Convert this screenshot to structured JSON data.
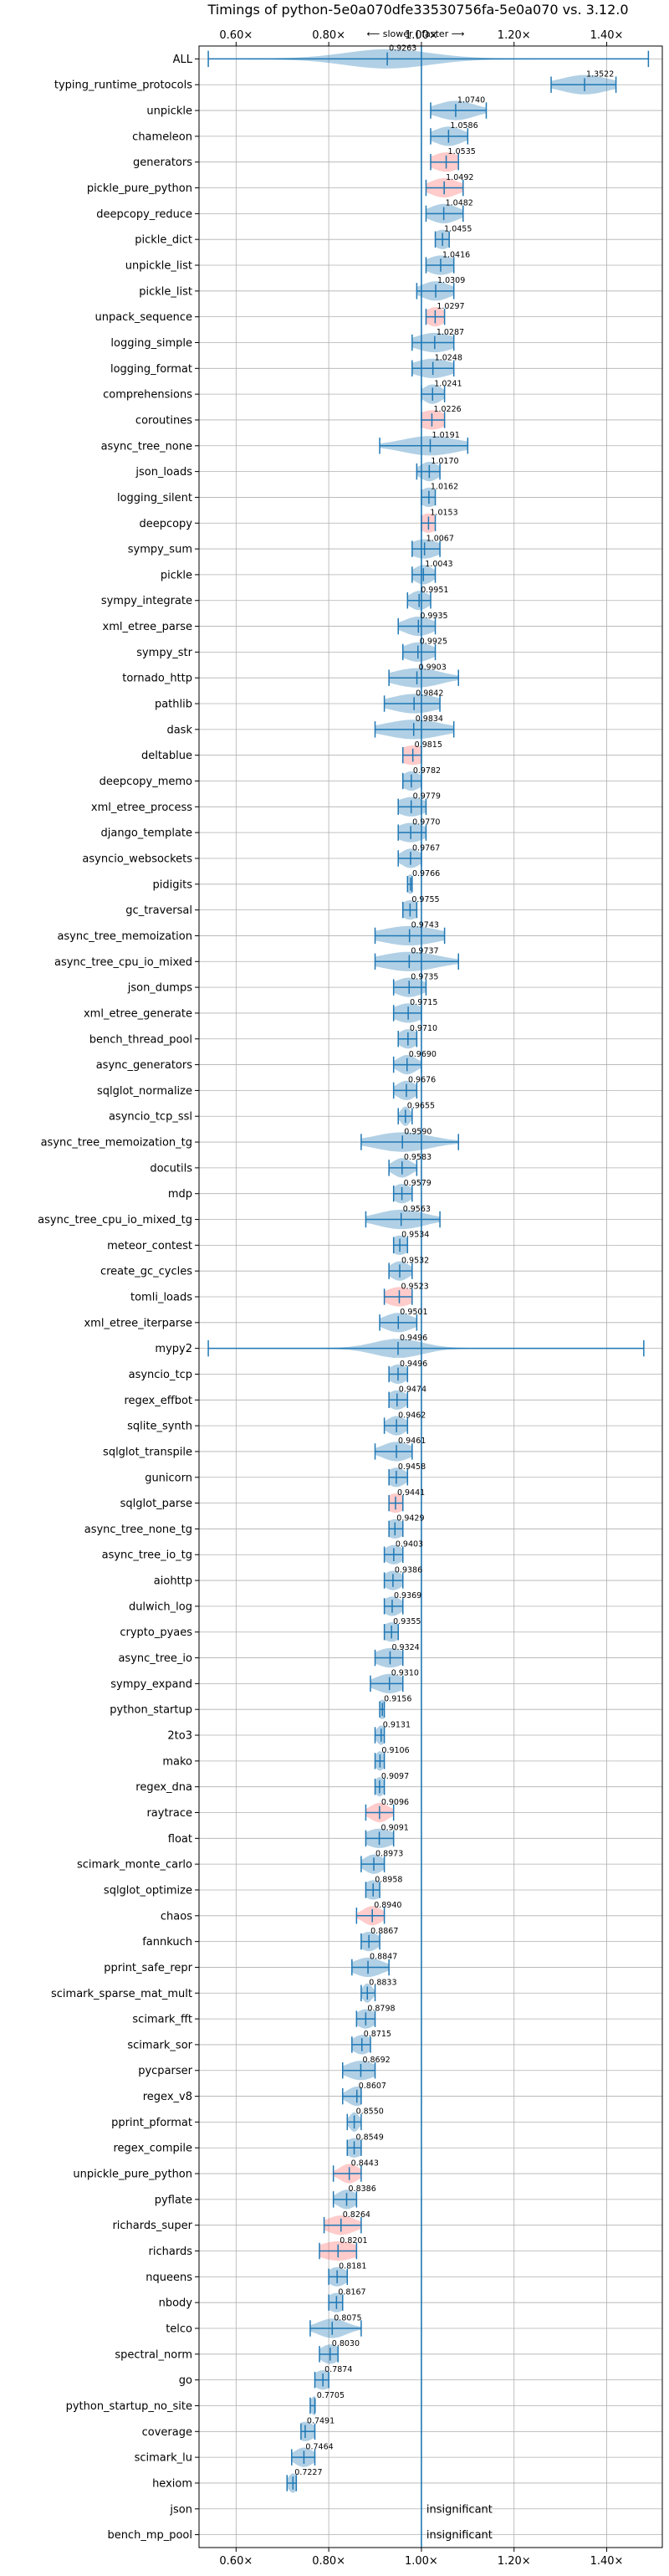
{
  "chart_data": {
    "type": "violin",
    "title": "Timings of python-5e0a070dfe33530756fa-5e0a070 vs. 3.12.0",
    "subtitle": "⟵ slower | faster ⟶",
    "xlim": [
      0.52,
      1.52
    ],
    "xticks": [
      0.6,
      0.8,
      1.0,
      1.2,
      1.4
    ],
    "xtick_labels": [
      "0.60×",
      "0.80×",
      "1.00×",
      "1.20×",
      "1.40×"
    ],
    "grid": true,
    "reference_line": 1.0,
    "colors": {
      "significant": "#1f77b4",
      "highlight": "#ff6b6b",
      "reference": "#1f77b4"
    },
    "benchmarks": [
      {
        "name": "ALL",
        "value": 0.9263,
        "lo": 0.54,
        "hi": 1.49,
        "w": 0.09
      },
      {
        "name": "typing_runtime_protocols",
        "value": 1.3522,
        "lo": 1.28,
        "hi": 1.42,
        "w": 0.05
      },
      {
        "name": "unpickle",
        "value": 1.074,
        "lo": 1.02,
        "hi": 1.14,
        "w": 0.04
      },
      {
        "name": "chameleon",
        "value": 1.0586,
        "lo": 1.02,
        "hi": 1.1,
        "w": 0.03
      },
      {
        "name": "generators",
        "value": 1.0535,
        "lo": 1.02,
        "hi": 1.08,
        "w": 0.03,
        "hl": true
      },
      {
        "name": "pickle_pure_python",
        "value": 1.0492,
        "lo": 1.01,
        "hi": 1.09,
        "w": 0.03,
        "hl": true
      },
      {
        "name": "deepcopy_reduce",
        "value": 1.0482,
        "lo": 1.01,
        "hi": 1.09,
        "w": 0.03
      },
      {
        "name": "pickle_dict",
        "value": 1.0455,
        "lo": 1.03,
        "hi": 1.06,
        "w": 0.02
      },
      {
        "name": "unpickle_list",
        "value": 1.0416,
        "lo": 1.01,
        "hi": 1.07,
        "w": 0.03
      },
      {
        "name": "pickle_list",
        "value": 1.0309,
        "lo": 0.99,
        "hi": 1.07,
        "w": 0.03
      },
      {
        "name": "unpack_sequence",
        "value": 1.0297,
        "lo": 1.01,
        "hi": 1.05,
        "w": 0.02,
        "hl": true
      },
      {
        "name": "logging_simple",
        "value": 1.0287,
        "lo": 0.98,
        "hi": 1.07,
        "w": 0.04
      },
      {
        "name": "logging_format",
        "value": 1.0248,
        "lo": 0.98,
        "hi": 1.07,
        "w": 0.04
      },
      {
        "name": "comprehensions",
        "value": 1.0241,
        "lo": 1.0,
        "hi": 1.05,
        "w": 0.02
      },
      {
        "name": "coroutines",
        "value": 1.0226,
        "lo": 1.0,
        "hi": 1.05,
        "w": 0.03,
        "hl": true
      },
      {
        "name": "async_tree_none",
        "value": 1.0191,
        "lo": 0.91,
        "hi": 1.1,
        "w": 0.06
      },
      {
        "name": "json_loads",
        "value": 1.017,
        "lo": 0.99,
        "hi": 1.04,
        "w": 0.02
      },
      {
        "name": "logging_silent",
        "value": 1.0162,
        "lo": 1.0,
        "hi": 1.03,
        "w": 0.02
      },
      {
        "name": "deepcopy",
        "value": 1.0153,
        "lo": 1.0,
        "hi": 1.03,
        "w": 0.02,
        "hl": true
      },
      {
        "name": "sympy_sum",
        "value": 1.0067,
        "lo": 0.98,
        "hi": 1.04,
        "w": 0.03
      },
      {
        "name": "pickle",
        "value": 1.0043,
        "lo": 0.98,
        "hi": 1.03,
        "w": 0.02
      },
      {
        "name": "sympy_integrate",
        "value": 0.9951,
        "lo": 0.97,
        "hi": 1.02,
        "w": 0.02
      },
      {
        "name": "xml_etree_parse",
        "value": 0.9935,
        "lo": 0.95,
        "hi": 1.03,
        "w": 0.03
      },
      {
        "name": "sympy_str",
        "value": 0.9925,
        "lo": 0.96,
        "hi": 1.03,
        "w": 0.03
      },
      {
        "name": "tornado_http",
        "value": 0.9903,
        "lo": 0.93,
        "hi": 1.08,
        "w": 0.05
      },
      {
        "name": "pathlib",
        "value": 0.9842,
        "lo": 0.92,
        "hi": 1.04,
        "w": 0.05
      },
      {
        "name": "dask",
        "value": 0.9834,
        "lo": 0.9,
        "hi": 1.07,
        "w": 0.06
      },
      {
        "name": "deltablue",
        "value": 0.9815,
        "lo": 0.96,
        "hi": 1.0,
        "w": 0.03,
        "hl": true
      },
      {
        "name": "deepcopy_memo",
        "value": 0.9782,
        "lo": 0.96,
        "hi": 1.0,
        "w": 0.02
      },
      {
        "name": "xml_etree_process",
        "value": 0.9779,
        "lo": 0.95,
        "hi": 1.01,
        "w": 0.03
      },
      {
        "name": "django_template",
        "value": 0.977,
        "lo": 0.95,
        "hi": 1.01,
        "w": 0.03
      },
      {
        "name": "asyncio_websockets",
        "value": 0.9767,
        "lo": 0.95,
        "hi": 1.0,
        "w": 0.02
      },
      {
        "name": "pidigits",
        "value": 0.9766,
        "lo": 0.97,
        "hi": 0.98,
        "w": 0.01
      },
      {
        "name": "gc_traversal",
        "value": 0.9755,
        "lo": 0.96,
        "hi": 0.99,
        "w": 0.02
      },
      {
        "name": "async_tree_memoization",
        "value": 0.9743,
        "lo": 0.9,
        "hi": 1.05,
        "w": 0.06
      },
      {
        "name": "async_tree_cpu_io_mixed",
        "value": 0.9737,
        "lo": 0.9,
        "hi": 1.08,
        "w": 0.06
      },
      {
        "name": "json_dumps",
        "value": 0.9735,
        "lo": 0.94,
        "hi": 1.01,
        "w": 0.03
      },
      {
        "name": "xml_etree_generate",
        "value": 0.9715,
        "lo": 0.94,
        "hi": 1.0,
        "w": 0.03
      },
      {
        "name": "bench_thread_pool",
        "value": 0.971,
        "lo": 0.95,
        "hi": 0.99,
        "w": 0.02
      },
      {
        "name": "async_generators",
        "value": 0.969,
        "lo": 0.94,
        "hi": 1.0,
        "w": 0.02
      },
      {
        "name": "sqlglot_normalize",
        "value": 0.9676,
        "lo": 0.94,
        "hi": 0.99,
        "w": 0.02
      },
      {
        "name": "asyncio_tcp_ssl",
        "value": 0.9655,
        "lo": 0.95,
        "hi": 0.98,
        "w": 0.01
      },
      {
        "name": "async_tree_memoization_tg",
        "value": 0.959,
        "lo": 0.87,
        "hi": 1.08,
        "w": 0.06
      },
      {
        "name": "docutils",
        "value": 0.9583,
        "lo": 0.93,
        "hi": 0.99,
        "w": 0.02
      },
      {
        "name": "mdp",
        "value": 0.9579,
        "lo": 0.94,
        "hi": 0.98,
        "w": 0.02
      },
      {
        "name": "async_tree_cpu_io_mixed_tg",
        "value": 0.9563,
        "lo": 0.88,
        "hi": 1.04,
        "w": 0.05
      },
      {
        "name": "meteor_contest",
        "value": 0.9534,
        "lo": 0.94,
        "hi": 0.97,
        "w": 0.02
      },
      {
        "name": "create_gc_cycles",
        "value": 0.9532,
        "lo": 0.93,
        "hi": 0.98,
        "w": 0.02
      },
      {
        "name": "tomli_loads",
        "value": 0.9523,
        "lo": 0.92,
        "hi": 0.98,
        "w": 0.03,
        "hl": true
      },
      {
        "name": "xml_etree_iterparse",
        "value": 0.9501,
        "lo": 0.91,
        "hi": 0.99,
        "w": 0.03
      },
      {
        "name": "mypy2",
        "value": 0.9496,
        "lo": 0.54,
        "hi": 1.48,
        "w": 0.05
      },
      {
        "name": "asyncio_tcp",
        "value": 0.9496,
        "lo": 0.93,
        "hi": 0.97,
        "w": 0.02
      },
      {
        "name": "regex_effbot",
        "value": 0.9474,
        "lo": 0.93,
        "hi": 0.97,
        "w": 0.02
      },
      {
        "name": "sqlite_synth",
        "value": 0.9462,
        "lo": 0.92,
        "hi": 0.97,
        "w": 0.02
      },
      {
        "name": "sqlglot_transpile",
        "value": 0.9461,
        "lo": 0.9,
        "hi": 0.98,
        "w": 0.03
      },
      {
        "name": "gunicorn",
        "value": 0.9458,
        "lo": 0.93,
        "hi": 0.97,
        "w": 0.02
      },
      {
        "name": "sqlglot_parse",
        "value": 0.9441,
        "lo": 0.93,
        "hi": 0.96,
        "w": 0.02,
        "hl": true
      },
      {
        "name": "async_tree_none_tg",
        "value": 0.9429,
        "lo": 0.93,
        "hi": 0.96,
        "w": 0.02
      },
      {
        "name": "async_tree_io_tg",
        "value": 0.9403,
        "lo": 0.92,
        "hi": 0.96,
        "w": 0.02
      },
      {
        "name": "aiohttp",
        "value": 0.9386,
        "lo": 0.92,
        "hi": 0.96,
        "w": 0.02
      },
      {
        "name": "dulwich_log",
        "value": 0.9369,
        "lo": 0.92,
        "hi": 0.96,
        "w": 0.02
      },
      {
        "name": "crypto_pyaes",
        "value": 0.9355,
        "lo": 0.92,
        "hi": 0.95,
        "w": 0.02
      },
      {
        "name": "async_tree_io",
        "value": 0.9324,
        "lo": 0.9,
        "hi": 0.96,
        "w": 0.03
      },
      {
        "name": "sympy_expand",
        "value": 0.931,
        "lo": 0.89,
        "hi": 0.96,
        "w": 0.03
      },
      {
        "name": "python_startup",
        "value": 0.9156,
        "lo": 0.91,
        "hi": 0.92,
        "w": 0.01
      },
      {
        "name": "2to3",
        "value": 0.9131,
        "lo": 0.9,
        "hi": 0.92,
        "w": 0.01
      },
      {
        "name": "mako",
        "value": 0.9106,
        "lo": 0.9,
        "hi": 0.92,
        "w": 0.01
      },
      {
        "name": "regex_dna",
        "value": 0.9097,
        "lo": 0.9,
        "hi": 0.92,
        "w": 0.01
      },
      {
        "name": "raytrace",
        "value": 0.9096,
        "lo": 0.88,
        "hi": 0.94,
        "w": 0.02,
        "hl": true
      },
      {
        "name": "float",
        "value": 0.9091,
        "lo": 0.88,
        "hi": 0.94,
        "w": 0.03
      },
      {
        "name": "scimark_monte_carlo",
        "value": 0.8973,
        "lo": 0.87,
        "hi": 0.92,
        "w": 0.02
      },
      {
        "name": "sqlglot_optimize",
        "value": 0.8958,
        "lo": 0.88,
        "hi": 0.91,
        "w": 0.02
      },
      {
        "name": "chaos",
        "value": 0.894,
        "lo": 0.86,
        "hi": 0.92,
        "w": 0.02,
        "hl": true
      },
      {
        "name": "fannkuch",
        "value": 0.8867,
        "lo": 0.87,
        "hi": 0.91,
        "w": 0.02
      },
      {
        "name": "pprint_safe_repr",
        "value": 0.8847,
        "lo": 0.85,
        "hi": 0.93,
        "w": 0.03
      },
      {
        "name": "scimark_sparse_mat_mult",
        "value": 0.8833,
        "lo": 0.87,
        "hi": 0.9,
        "w": 0.01
      },
      {
        "name": "scimark_fft",
        "value": 0.8798,
        "lo": 0.86,
        "hi": 0.9,
        "w": 0.02
      },
      {
        "name": "scimark_sor",
        "value": 0.8715,
        "lo": 0.85,
        "hi": 0.89,
        "w": 0.02
      },
      {
        "name": "pycparser",
        "value": 0.8692,
        "lo": 0.83,
        "hi": 0.9,
        "w": 0.03
      },
      {
        "name": "regex_v8",
        "value": 0.8607,
        "lo": 0.83,
        "hi": 0.87,
        "w": 0.02
      },
      {
        "name": "pprint_pformat",
        "value": 0.855,
        "lo": 0.84,
        "hi": 0.87,
        "w": 0.01
      },
      {
        "name": "regex_compile",
        "value": 0.8549,
        "lo": 0.84,
        "hi": 0.87,
        "w": 0.02
      },
      {
        "name": "unpickle_pure_python",
        "value": 0.8443,
        "lo": 0.81,
        "hi": 0.87,
        "w": 0.02,
        "hl": true
      },
      {
        "name": "pyflate",
        "value": 0.8386,
        "lo": 0.81,
        "hi": 0.86,
        "w": 0.02
      },
      {
        "name": "richards_super",
        "value": 0.8264,
        "lo": 0.79,
        "hi": 0.87,
        "w": 0.03,
        "hl": true
      },
      {
        "name": "richards",
        "value": 0.8201,
        "lo": 0.78,
        "hi": 0.86,
        "w": 0.04,
        "hl": true
      },
      {
        "name": "nqueens",
        "value": 0.8181,
        "lo": 0.8,
        "hi": 0.84,
        "w": 0.02
      },
      {
        "name": "nbody",
        "value": 0.8167,
        "lo": 0.8,
        "hi": 0.83,
        "w": 0.02
      },
      {
        "name": "telco",
        "value": 0.8075,
        "lo": 0.76,
        "hi": 0.87,
        "w": 0.03
      },
      {
        "name": "spectral_norm",
        "value": 0.803,
        "lo": 0.78,
        "hi": 0.82,
        "w": 0.02
      },
      {
        "name": "go",
        "value": 0.7874,
        "lo": 0.77,
        "hi": 0.8,
        "w": 0.02
      },
      {
        "name": "python_startup_no_site",
        "value": 0.7705,
        "lo": 0.76,
        "hi": 0.77,
        "w": 0.01
      },
      {
        "name": "coverage",
        "value": 0.7491,
        "lo": 0.74,
        "hi": 0.77,
        "w": 0.02
      },
      {
        "name": "scimark_lu",
        "value": 0.7464,
        "lo": 0.72,
        "hi": 0.77,
        "w": 0.02
      },
      {
        "name": "hexiom",
        "value": 0.7227,
        "lo": 0.71,
        "hi": 0.73,
        "w": 0.01
      },
      {
        "name": "json",
        "insignificant": true
      },
      {
        "name": "bench_mp_pool",
        "insignificant": true
      }
    ],
    "insignificant_label": "insignificant"
  }
}
